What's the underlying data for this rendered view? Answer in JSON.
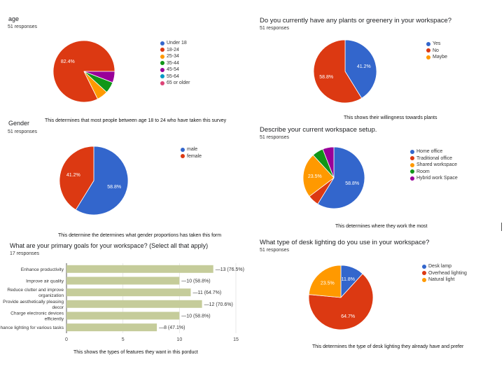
{
  "colors": {
    "blue": "#3366cc",
    "red": "#dc3912",
    "orange": "#ff9900",
    "green": "#109618",
    "purple": "#990099",
    "teal": "#0099c6",
    "pink": "#dd4477",
    "bar": "#c5cc9a"
  },
  "chart_data": [
    {
      "type": "pie",
      "title": "age",
      "responses": "51 responses",
      "note": "This determines that most people between age 18 to 24 who have taken this survey",
      "categories": [
        "Under 18",
        "18-24",
        "25-34",
        "35-44",
        "45-54",
        "55-64",
        "65 or older"
      ],
      "values": [
        0,
        82.4,
        5.9,
        5.9,
        5.9,
        0,
        0
      ],
      "labels": [
        "",
        "82.4%",
        "",
        "",
        "",
        "",
        ""
      ],
      "legend": "right"
    },
    {
      "type": "pie",
      "title": "Do you currently have any plants or greenery in your workspace?",
      "responses": "51 responses",
      "note": "This shows their willingness towards plants",
      "categories": [
        "Yes",
        "No",
        "Maybe"
      ],
      "values": [
        41.2,
        58.8,
        0
      ],
      "labels": [
        "41.2%",
        "58.8%",
        ""
      ],
      "legend": "right"
    },
    {
      "type": "pie",
      "title": "Gender",
      "responses": "51 responses",
      "note": "This determine the determines what gender proportions has taken this form",
      "categories": [
        "male",
        "female"
      ],
      "values": [
        58.8,
        41.2
      ],
      "labels": [
        "58.8%",
        "41.2%"
      ],
      "legend": "right"
    },
    {
      "type": "pie",
      "title": "Describe your current workspace setup.",
      "responses": "51 responses",
      "note": "This determines where they work the most",
      "categories": [
        "Home office",
        "Traditional office",
        "Shared workspace",
        "Room",
        "Hybrid work Space"
      ],
      "values": [
        58.8,
        5.9,
        23.5,
        5.9,
        5.9
      ],
      "labels": [
        "58.8%",
        "",
        "23.5%",
        "",
        ""
      ],
      "legend": "right"
    },
    {
      "type": "bar",
      "orientation": "horizontal",
      "title": "What are your primary goals for your workspace? (Select all that apply)",
      "responses": "17 responses",
      "note": "This shows the types of features they want in this porduct",
      "categories": [
        [
          "Enhance productivity"
        ],
        [
          "Improve air quality"
        ],
        [
          "Reduce clutter and improve",
          "organization"
        ],
        [
          "Provide aesthetically pleasing",
          "decor"
        ],
        [
          "Charge electronic devices",
          "efficiently"
        ],
        [
          "Enhance lighting for various tasks"
        ]
      ],
      "values": [
        13,
        10,
        11,
        12,
        10,
        8
      ],
      "data_labels": [
        "13 (76.5%)",
        "10 (58.8%)",
        "11 (64.7%)",
        "12 (70.6%)",
        "10 (58.8%)",
        "8 (47.1%)"
      ],
      "xlim": [
        0,
        15
      ],
      "xticks": [
        "0",
        "5",
        "10",
        "15"
      ],
      "grid": true
    },
    {
      "type": "pie",
      "title": "What type of desk lighting do you use in your workspace?",
      "responses": "51 responses",
      "note": "This determines the type of desk lighting they already have and prefer",
      "categories": [
        "Desk lamp",
        "Overhead lighting",
        "Natural light"
      ],
      "values": [
        11.8,
        64.7,
        23.5
      ],
      "labels": [
        "11.8%",
        "64.7%",
        "23.5%"
      ],
      "legend": "right"
    }
  ]
}
